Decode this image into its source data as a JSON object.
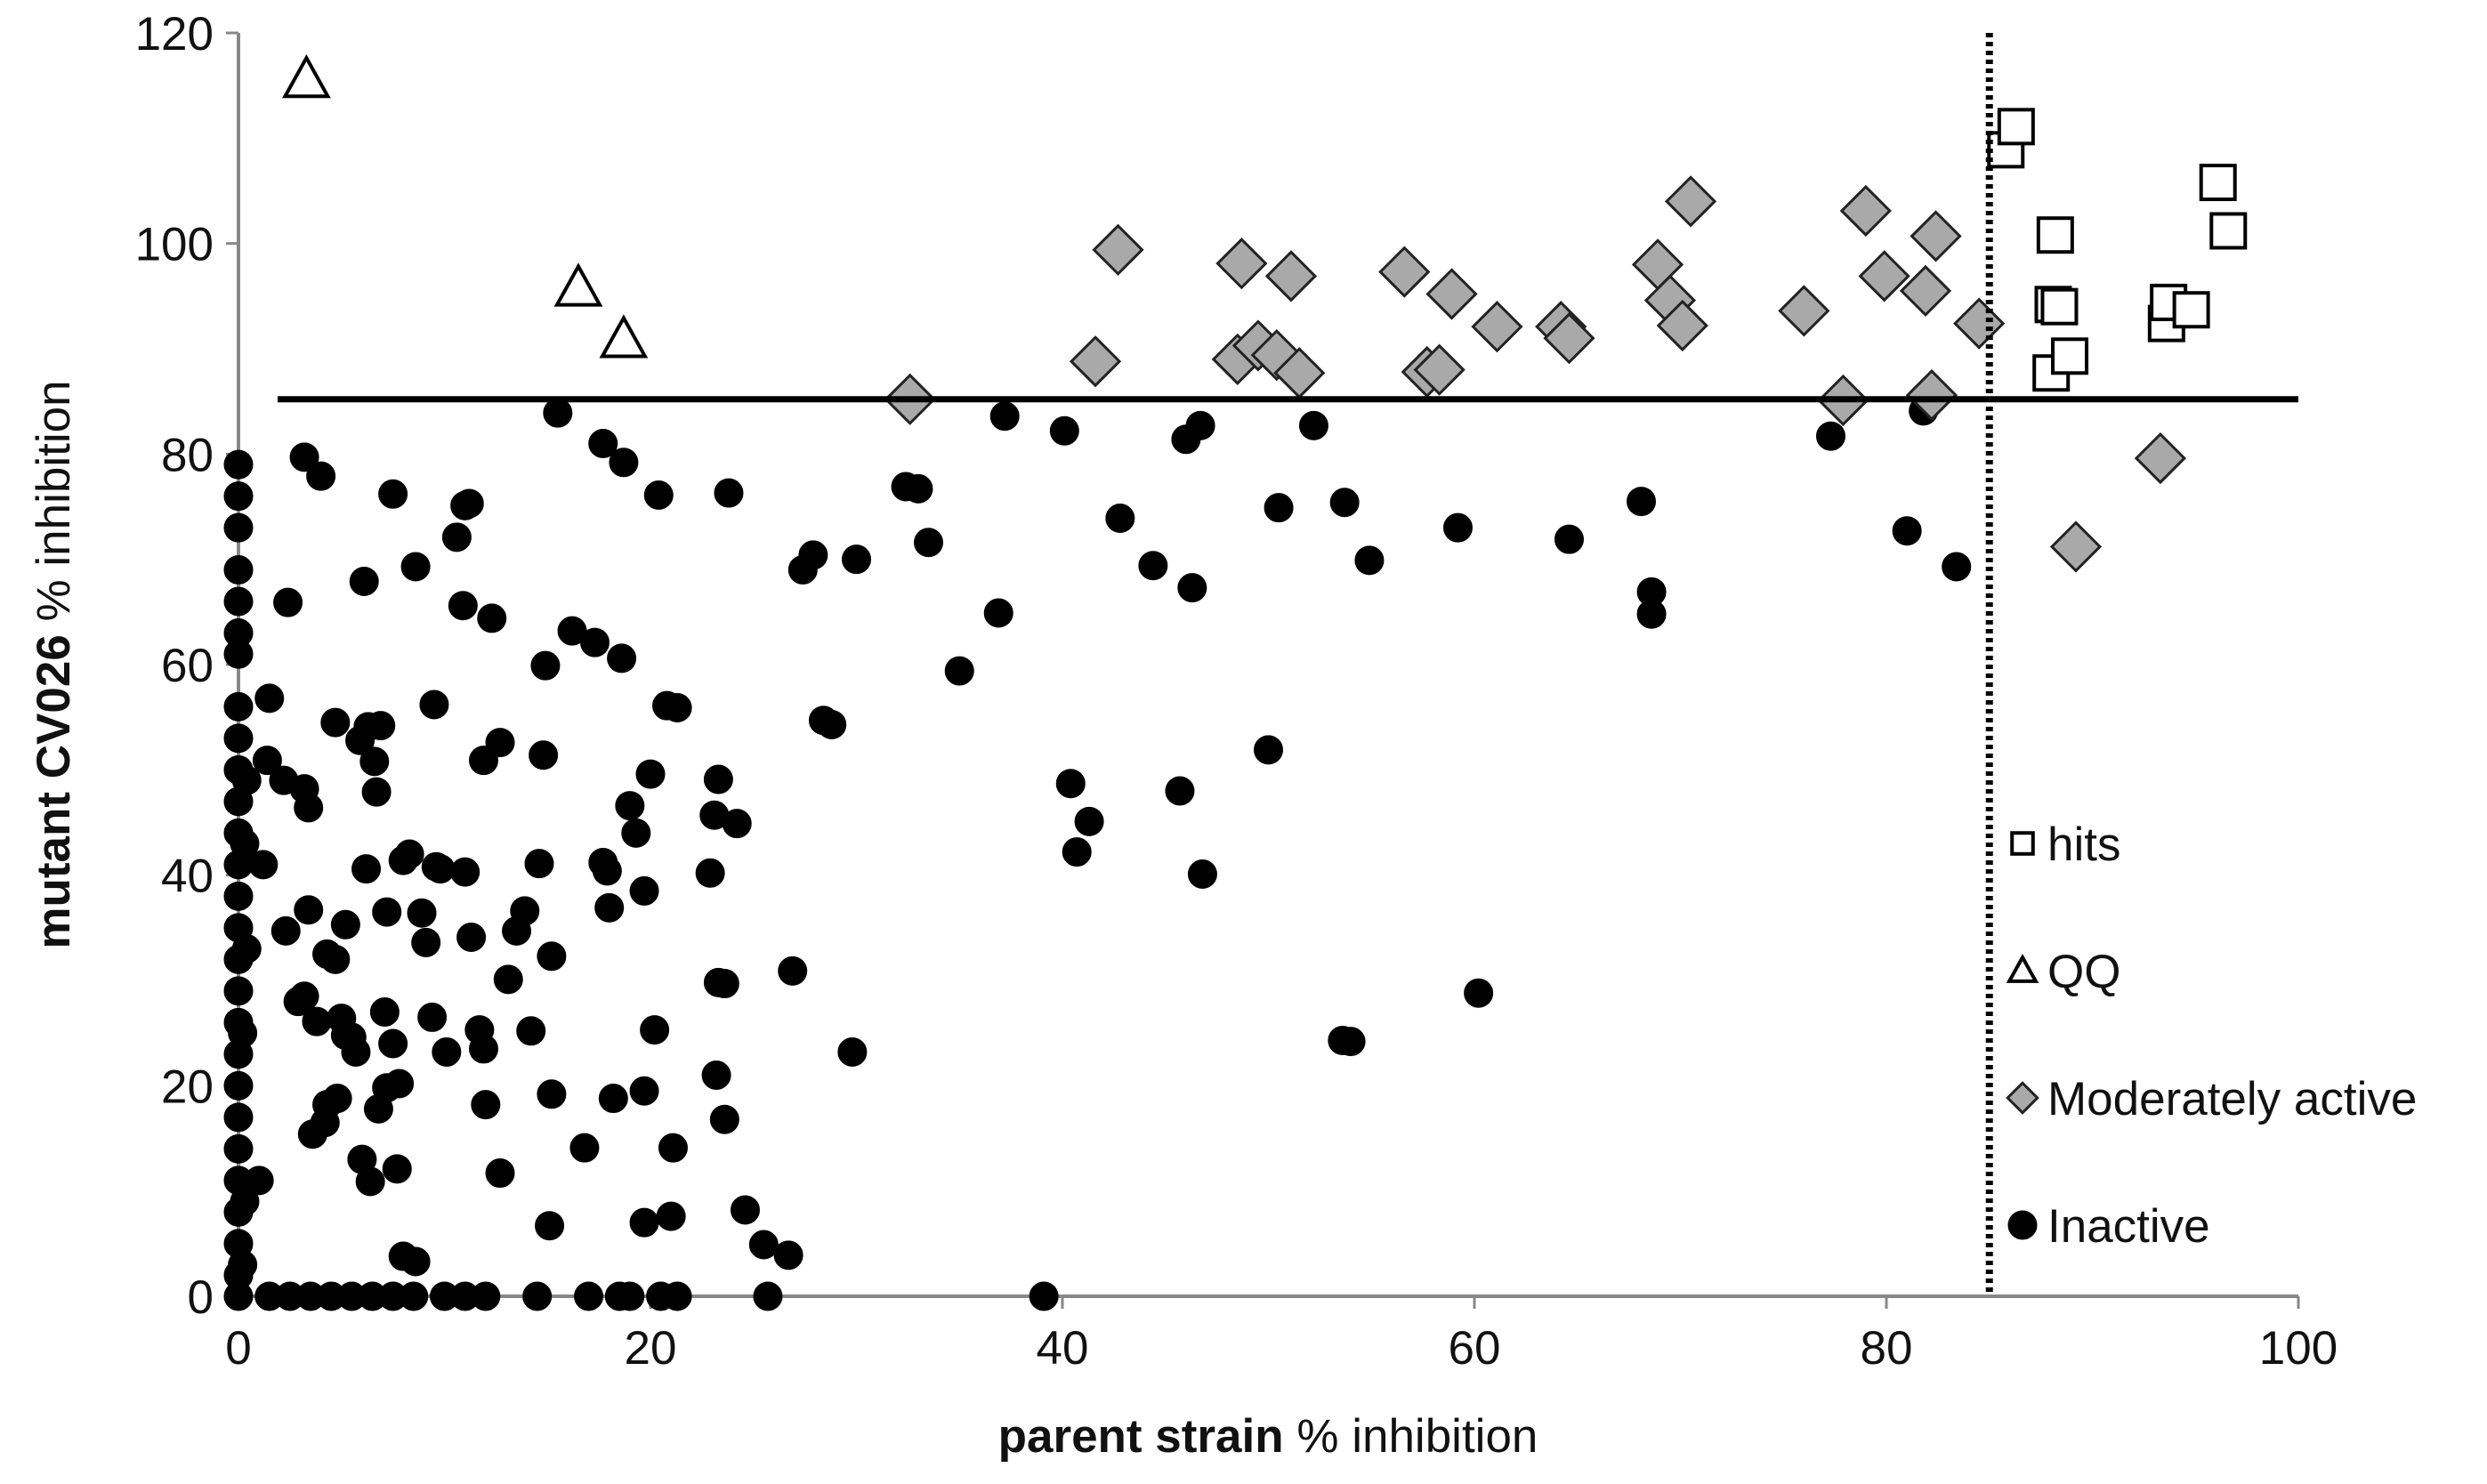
{
  "chart_data": {
    "type": "scatter",
    "title": "",
    "xlabel_bold": "parent strain",
    "xlabel_rest": " % inhibition",
    "ylabel_bold": "mutant CV026",
    "ylabel_rest": " % inhibition",
    "xlim": [
      0,
      100
    ],
    "ylim": [
      0,
      120
    ],
    "xticks": [
      "0",
      "20",
      "40",
      "60",
      "80",
      "100"
    ],
    "yticks": [
      "0",
      "20",
      "40",
      "60",
      "80",
      "100",
      "120"
    ],
    "grid": false,
    "legend_position": "right",
    "thresholds": {
      "horizontal_y": 85.2,
      "vertical_x": 85.0
    },
    "colors": {
      "inactive": "#000000",
      "moderate": "#a9a9a9",
      "hits": "#ffffff",
      "qq": "#ffffff",
      "outline": "#000000"
    },
    "series": [
      {
        "name": "hits",
        "marker": "square",
        "points": [
          [
            85.8,
            108.9
          ],
          [
            86.3,
            111.1
          ],
          [
            88.2,
            100.8
          ],
          [
            88.1,
            94.2
          ],
          [
            88.4,
            94.0
          ],
          [
            88.0,
            87.7
          ],
          [
            88.9,
            89.3
          ],
          [
            93.6,
            92.4
          ],
          [
            93.7,
            94.4
          ],
          [
            94.8,
            93.7
          ],
          [
            96.1,
            105.8
          ],
          [
            96.6,
            101.2
          ]
        ]
      },
      {
        "name": "QQ",
        "marker": "triangle",
        "points": [
          [
            3.3,
            115.6
          ],
          [
            16.5,
            95.8
          ],
          [
            18.7,
            90.9
          ]
        ]
      },
      {
        "name": "Moderately active",
        "marker": "diamond",
        "points": [
          [
            32.6,
            85.2
          ],
          [
            41.6,
            88.8
          ],
          [
            42.7,
            99.4
          ],
          [
            48.5,
            89.0
          ],
          [
            48.7,
            98.1
          ],
          [
            49.5,
            90.3
          ],
          [
            50.4,
            89.4
          ],
          [
            51.1,
            96.9
          ],
          [
            51.5,
            87.7
          ],
          [
            56.6,
            97.3
          ],
          [
            57.7,
            87.8
          ],
          [
            58.3,
            88.0
          ],
          [
            58.9,
            95.2
          ],
          [
            61.1,
            92.1
          ],
          [
            64.2,
            92.1
          ],
          [
            64.6,
            91.0
          ],
          [
            68.9,
            98.0
          ],
          [
            69.5,
            94.6
          ],
          [
            70.1,
            92.2
          ],
          [
            70.5,
            104.0
          ],
          [
            76.0,
            93.6
          ],
          [
            77.9,
            85.1
          ],
          [
            79.0,
            103.1
          ],
          [
            79.9,
            96.9
          ],
          [
            81.9,
            95.5
          ],
          [
            82.2,
            85.6
          ],
          [
            82.4,
            100.7
          ],
          [
            84.5,
            92.4
          ],
          [
            93.3,
            79.6
          ],
          [
            89.2,
            71.2
          ]
        ]
      },
      {
        "name": "Inactive",
        "marker": "circle",
        "points": [
          [
            0,
            0
          ],
          [
            0,
            2
          ],
          [
            0,
            5
          ],
          [
            0,
            8
          ],
          [
            0,
            11
          ],
          [
            0,
            14
          ],
          [
            0,
            17
          ],
          [
            0,
            20
          ],
          [
            0,
            23
          ],
          [
            0,
            26
          ],
          [
            0,
            29
          ],
          [
            0,
            32
          ],
          [
            0,
            35
          ],
          [
            0,
            38
          ],
          [
            0,
            41
          ],
          [
            0,
            44
          ],
          [
            0,
            47
          ],
          [
            0,
            50
          ],
          [
            0,
            53
          ],
          [
            0,
            56
          ],
          [
            0,
            61
          ],
          [
            0,
            63
          ],
          [
            0,
            66
          ],
          [
            0,
            69
          ],
          [
            0,
            73
          ],
          [
            0,
            76
          ],
          [
            0,
            79
          ],
          [
            0.2,
            3
          ],
          [
            0.3,
            9
          ],
          [
            0.2,
            25
          ],
          [
            0.4,
            33
          ],
          [
            0.3,
            43
          ],
          [
            0.4,
            49
          ],
          [
            1.5,
            56.8
          ],
          [
            3.2,
            48.2
          ],
          [
            2.4,
            65.9
          ],
          [
            3.2,
            79.7
          ],
          [
            4.0,
            77.9
          ],
          [
            4.3,
            18.2
          ],
          [
            4.7,
            32.0
          ],
          [
            5.2,
            35.3
          ],
          [
            5.5,
            24.6
          ],
          [
            5.9,
            52.8
          ],
          [
            6.1,
            67.9
          ],
          [
            6.3,
            54.1
          ],
          [
            6.7,
            47.9
          ],
          [
            6.9,
            54.2
          ],
          [
            7.2,
            36.5
          ],
          [
            7.5,
            24.0
          ],
          [
            7.5,
            76.2
          ],
          [
            8.0,
            41.4
          ],
          [
            8.6,
            69.3
          ],
          [
            8.9,
            36.4
          ],
          [
            9.1,
            33.6
          ],
          [
            9.6,
            40.8
          ],
          [
            9.5,
            56.2
          ],
          [
            10.1,
            23.2
          ],
          [
            10.6,
            72.1
          ],
          [
            10.9,
            65.6
          ],
          [
            11.0,
            75.1
          ],
          [
            11.2,
            75.3
          ],
          [
            11.0,
            40.3
          ],
          [
            11.3,
            34.1
          ],
          [
            11.7,
            25.3
          ],
          [
            11.9,
            23.5
          ],
          [
            11.9,
            50.9
          ],
          [
            12.0,
            18.2
          ],
          [
            12.3,
            64.4
          ],
          [
            12.7,
            52.6
          ],
          [
            12.7,
            11.7
          ],
          [
            13.1,
            30.1
          ],
          [
            13.5,
            34.7
          ],
          [
            13.9,
            36.6
          ],
          [
            14.2,
            25.2
          ],
          [
            14.6,
            41.1
          ],
          [
            14.8,
            51.4
          ],
          [
            14.9,
            59.9
          ],
          [
            15.2,
            32.3
          ],
          [
            15.2,
            19.2
          ],
          [
            15.1,
            6.7
          ],
          [
            15.5,
            83.9
          ],
          [
            16.2,
            63.2
          ],
          [
            16.8,
            14.1
          ],
          [
            17.3,
            62.1
          ],
          [
            17.7,
            81.0
          ],
          [
            17.7,
            41.2
          ],
          [
            17.9,
            40.4
          ],
          [
            18.0,
            36.9
          ],
          [
            18.2,
            18.8
          ],
          [
            18.6,
            60.6
          ],
          [
            18.7,
            79.2
          ],
          [
            19.0,
            46.6
          ],
          [
            19.3,
            44.0
          ],
          [
            19.7,
            19.5
          ],
          [
            19.7,
            38.5
          ],
          [
            19.7,
            7.0
          ],
          [
            20.0,
            49.6
          ],
          [
            20.2,
            25.3
          ],
          [
            20.4,
            76.1
          ],
          [
            20.8,
            56.1
          ],
          [
            21.1,
            14.1
          ],
          [
            21.3,
            55.9
          ],
          [
            21.0,
            7.6
          ],
          [
            22.9,
            40.2
          ],
          [
            23.1,
            45.7
          ],
          [
            23.3,
            49.1
          ],
          [
            23.3,
            29.8
          ],
          [
            23.2,
            21.0
          ],
          [
            23.6,
            16.8
          ],
          [
            23.6,
            29.7
          ],
          [
            23.8,
            76.3
          ],
          [
            24.2,
            44.9
          ],
          [
            24.6,
            8.2
          ],
          [
            25.5,
            4.9
          ],
          [
            26.7,
            3.9
          ],
          [
            26.9,
            30.9
          ],
          [
            27.4,
            69.0
          ],
          [
            27.9,
            70.4
          ],
          [
            28.4,
            54.7
          ],
          [
            28.8,
            54.3
          ],
          [
            29.8,
            23.2
          ],
          [
            30.0,
            70.0
          ],
          [
            32.4,
            76.9
          ],
          [
            33.0,
            76.7
          ],
          [
            33.5,
            71.6
          ],
          [
            35.0,
            59.4
          ],
          [
            36.9,
            64.9
          ],
          [
            37.2,
            83.6
          ],
          [
            40.1,
            82.2
          ],
          [
            40.4,
            48.7
          ],
          [
            40.7,
            42.2
          ],
          [
            41.3,
            45.1
          ],
          [
            42.8,
            73.9
          ],
          [
            44.4,
            69.4
          ],
          [
            45.7,
            48.0
          ],
          [
            46.0,
            81.4
          ],
          [
            46.3,
            67.3
          ],
          [
            46.7,
            82.7
          ],
          [
            46.8,
            40.1
          ],
          [
            50.0,
            51.9
          ],
          [
            50.5,
            74.9
          ],
          [
            52.2,
            82.7
          ],
          [
            53.6,
            24.3
          ],
          [
            53.7,
            75.4
          ],
          [
            54.0,
            24.2
          ],
          [
            54.9,
            69.9
          ],
          [
            59.2,
            73.0
          ],
          [
            60.2,
            28.8
          ],
          [
            64.6,
            71.9
          ],
          [
            68.1,
            75.5
          ],
          [
            68.6,
            66.9
          ],
          [
            68.6,
            64.8
          ],
          [
            77.3,
            81.7
          ],
          [
            81.0,
            72.7
          ],
          [
            81.8,
            84.1
          ],
          [
            83.4,
            69.3
          ],
          [
            1.5,
            0
          ],
          [
            2.5,
            0
          ],
          [
            3.5,
            0
          ],
          [
            4.5,
            0
          ],
          [
            5.5,
            0
          ],
          [
            6.5,
            0
          ],
          [
            7.5,
            0
          ],
          [
            8.5,
            0
          ],
          [
            10,
            0
          ],
          [
            11,
            0
          ],
          [
            12,
            0
          ],
          [
            14.5,
            0
          ],
          [
            17,
            0
          ],
          [
            18.5,
            0
          ],
          [
            19,
            0
          ],
          [
            20.5,
            0
          ],
          [
            21.3,
            0
          ],
          [
            25.7,
            0
          ],
          [
            39.1,
            0
          ],
          [
            1.0,
            11.0
          ],
          [
            1.4,
            50.9
          ],
          [
            2.2,
            49.0
          ],
          [
            3.2,
            28.5
          ],
          [
            3.4,
            36.7
          ],
          [
            3.6,
            15.4
          ],
          [
            4.2,
            16.5
          ],
          [
            4.8,
            18.8
          ],
          [
            5.2,
            24.8
          ],
          [
            5.7,
            23.2
          ],
          [
            6.0,
            13.0
          ],
          [
            6.4,
            10.9
          ],
          [
            6.8,
            17.8
          ],
          [
            7.2,
            19.8
          ],
          [
            7.7,
            12.1
          ],
          [
            8.0,
            3.8
          ],
          [
            2.9,
            28.0
          ],
          [
            3.4,
            46.4
          ],
          [
            3.8,
            26.1
          ],
          [
            4.3,
            32.5
          ],
          [
            5.0,
            26.4
          ],
          [
            6.2,
            40.6
          ],
          [
            7.1,
            27.0
          ],
          [
            7.8,
            20.2
          ],
          [
            8.6,
            3.3
          ],
          [
            9.4,
            26.5
          ],
          [
            2.3,
            34.7
          ],
          [
            1.2,
            41.0
          ],
          [
            4.7,
            54.5
          ],
          [
            6.6,
            50.8
          ],
          [
            8.3,
            42.0
          ],
          [
            9.8,
            40.6
          ]
        ]
      }
    ]
  }
}
